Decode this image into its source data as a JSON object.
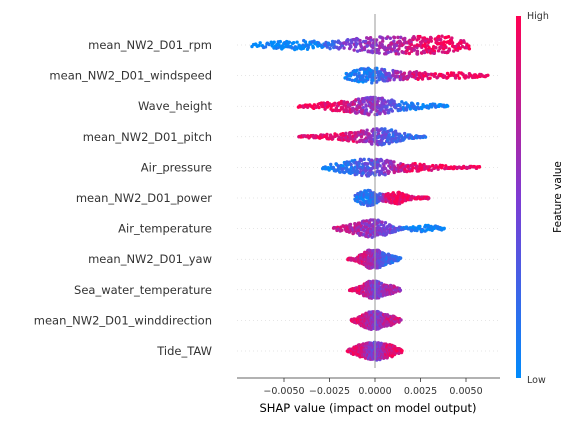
{
  "chart_data": {
    "type": "scatter",
    "subtype": "shap-beeswarm",
    "xlabel": "SHAP value (impact on model output)",
    "xlim": [
      -0.0078,
      0.0072
    ],
    "xticks": [
      {
        "value": -0.005,
        "label": "−0.0050"
      },
      {
        "value": -0.0025,
        "label": "−0.0025"
      },
      {
        "value": 0.0,
        "label": "0.0000"
      },
      {
        "value": 0.0025,
        "label": "0.0025"
      },
      {
        "value": 0.005,
        "label": "0.0050"
      }
    ],
    "colorbar": {
      "title": "Feature value",
      "high_label": "High",
      "low_label": "Low",
      "low_color": "#008bfb",
      "high_color": "#ff0052"
    },
    "features": [
      {
        "name": "mean_NW2_D01_rpm",
        "min": -0.0068,
        "max": 0.0052,
        "density": [
          [
            -0.0045,
            0.45,
            0.0
          ],
          [
            0.0,
            0.8,
            0.55
          ],
          [
            0.0032,
            1.0,
            0.95
          ]
        ]
      },
      {
        "name": "mean_NW2_D01_windspeed",
        "min": -0.0017,
        "max": 0.0062,
        "density": [
          [
            -0.0003,
            0.8,
            0.1
          ],
          [
            0.002,
            0.35,
            0.85
          ],
          [
            0.0045,
            0.25,
            1.0
          ]
        ]
      },
      {
        "name": "Wave_height",
        "min": -0.0042,
        "max": 0.004,
        "density": [
          [
            -0.0022,
            0.4,
            0.95
          ],
          [
            0.0,
            0.9,
            0.5
          ],
          [
            0.0025,
            0.25,
            0.05
          ]
        ]
      },
      {
        "name": "mean_NW2_D01_pitch",
        "min": -0.0042,
        "max": 0.0028,
        "density": [
          [
            -0.0025,
            0.2,
            0.95
          ],
          [
            -0.0008,
            0.35,
            0.9
          ],
          [
            0.0005,
            0.75,
            0.2
          ]
        ]
      },
      {
        "name": "Air_pressure",
        "min": -0.0029,
        "max": 0.0058,
        "density": [
          [
            -0.0015,
            0.35,
            0.05
          ],
          [
            0.0,
            0.75,
            0.5
          ],
          [
            0.0025,
            0.3,
            0.95
          ]
        ]
      },
      {
        "name": "mean_NW2_D01_power",
        "min": -0.0011,
        "max": 0.003,
        "density": [
          [
            -0.0004,
            0.8,
            0.15
          ],
          [
            0.0012,
            0.6,
            0.95
          ]
        ]
      },
      {
        "name": "Air_temperature",
        "min": -0.0023,
        "max": 0.0038,
        "density": [
          [
            -0.0012,
            0.3,
            0.8
          ],
          [
            0.0,
            0.85,
            0.45
          ],
          [
            0.0028,
            0.3,
            0.05
          ]
        ]
      },
      {
        "name": "mean_NW2_D01_yaw",
        "min": -0.0015,
        "max": 0.0014,
        "density": [
          [
            -0.0005,
            0.5,
            0.9
          ],
          [
            0.0,
            0.9,
            0.5
          ],
          [
            0.0008,
            0.4,
            0.2
          ]
        ]
      },
      {
        "name": "Sea_water_temperature",
        "min": -0.0014,
        "max": 0.0014,
        "density": [
          [
            -0.0006,
            0.4,
            0.9
          ],
          [
            0.0,
            0.9,
            0.4
          ],
          [
            0.0008,
            0.4,
            0.7
          ]
        ]
      },
      {
        "name": "mean_NW2_D01_winddirection",
        "min": -0.0013,
        "max": 0.0014,
        "density": [
          [
            -0.0006,
            0.5,
            0.9
          ],
          [
            0.0,
            0.9,
            0.45
          ],
          [
            0.0008,
            0.5,
            0.8
          ]
        ]
      },
      {
        "name": "Tide_TAW",
        "min": -0.0015,
        "max": 0.0015,
        "density": [
          [
            -0.0008,
            0.6,
            0.9
          ],
          [
            0.0,
            0.9,
            0.4
          ],
          [
            0.0008,
            0.6,
            0.9
          ]
        ]
      }
    ]
  }
}
